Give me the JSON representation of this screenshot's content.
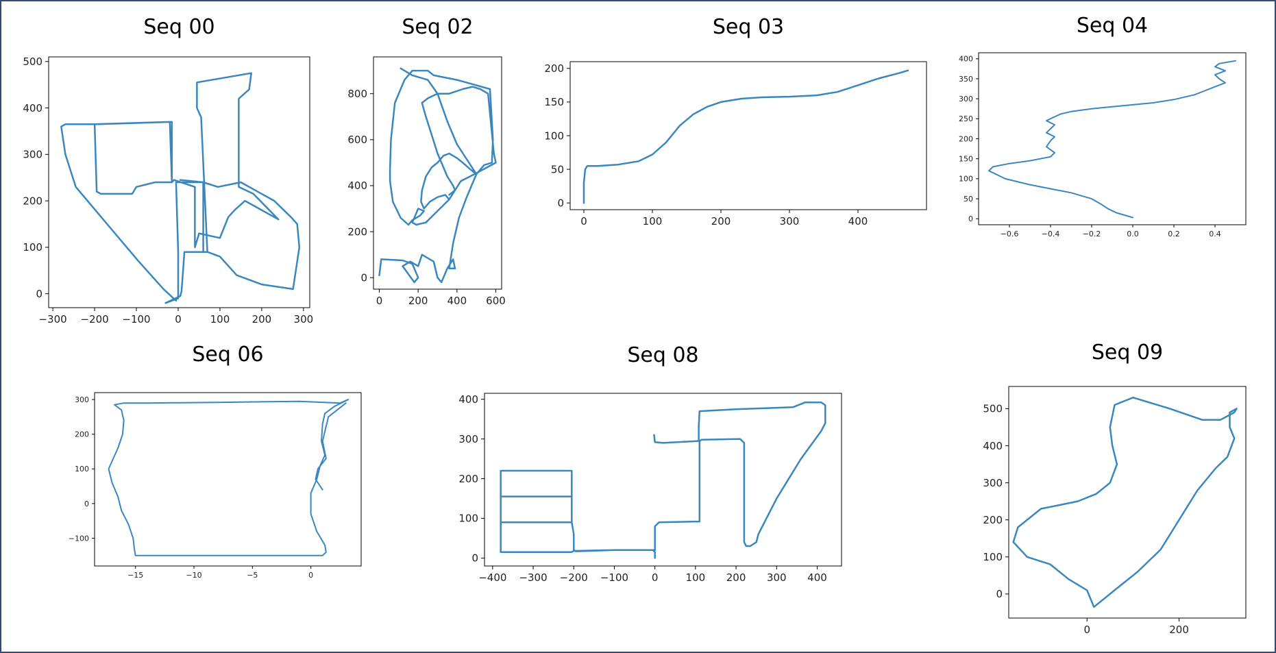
{
  "colors": {
    "line": "#3a86bf",
    "frame": "#2f4b7c"
  },
  "chart_data": [
    {
      "type": "line",
      "title": "Seq 00",
      "xlim": [
        -310,
        315
      ],
      "ylim": [
        -30,
        510
      ],
      "xticks": [
        -300,
        -200,
        -100,
        0,
        100,
        200,
        300
      ],
      "yticks": [
        0,
        100,
        200,
        300,
        400,
        500
      ],
      "grid": false,
      "series": [
        {
          "x": [
            -30,
            0,
            0,
            -5,
            60,
            60,
            70,
            55,
            45,
            45,
            175,
            170,
            145,
            145,
            180,
            240,
            160,
            135,
            120,
            100,
            50,
            40,
            40
          ],
          "y": [
            -20,
            -10,
            90,
            240,
            240,
            90,
            90,
            380,
            400,
            455,
            475,
            440,
            420,
            230,
            215,
            160,
            200,
            180,
            165,
            120,
            130,
            100,
            230
          ]
        },
        {
          "x": [
            40,
            -10,
            -15,
            -20,
            -200,
            -195,
            -185,
            -110,
            -100,
            -55,
            -15,
            -15,
            -190,
            -270,
            -280,
            -270,
            -245,
            -170,
            -95,
            -35,
            -5
          ],
          "y": [
            230,
            245,
            240,
            370,
            365,
            220,
            215,
            215,
            230,
            240,
            240,
            370,
            365,
            365,
            360,
            300,
            230,
            150,
            70,
            10,
            -15
          ]
        },
        {
          "x": [
            -30,
            5,
            8,
            15,
            70,
            100,
            140,
            200,
            275,
            290,
            285,
            270,
            230,
            150,
            95,
            60,
            5
          ],
          "y": [
            -20,
            -5,
            5,
            90,
            90,
            80,
            40,
            20,
            10,
            100,
            150,
            165,
            200,
            240,
            230,
            240,
            245
          ]
        }
      ]
    },
    {
      "type": "line",
      "title": "Seq 02",
      "xlim": [
        -30,
        630
      ],
      "ylim": [
        -50,
        960
      ],
      "xticks": [
        0,
        200,
        400,
        600
      ],
      "yticks": [
        0,
        200,
        400,
        600,
        800
      ],
      "grid": false,
      "series": [
        {
          "x": [
            0,
            10,
            120,
            170,
            200,
            180,
            120,
            160,
            200,
            220,
            260,
            280,
            300,
            320,
            350,
            380,
            390,
            360,
            380,
            410,
            450,
            500,
            540,
            580,
            585,
            570,
            400,
            280,
            250,
            170,
            130,
            80,
            60,
            55,
            55,
            70,
            110,
            150,
            170,
            210,
            230,
            200,
            170,
            190,
            240,
            300,
            360,
            420,
            490,
            600,
            590,
            560,
            520,
            480,
            430,
            360,
            300,
            250,
            220
          ],
          "y": [
            10,
            80,
            75,
            60,
            0,
            -20,
            50,
            70,
            50,
            100,
            80,
            70,
            0,
            -20,
            40,
            80,
            40,
            40,
            150,
            260,
            350,
            450,
            490,
            500,
            600,
            820,
            860,
            880,
            900,
            900,
            860,
            760,
            600,
            470,
            420,
            330,
            260,
            230,
            250,
            270,
            290,
            300,
            240,
            230,
            240,
            290,
            340,
            420,
            450,
            500,
            540,
            800,
            820,
            830,
            820,
            800,
            800,
            780,
            760
          ]
        },
        {
          "x": [
            110,
            170,
            250,
            300,
            350,
            400,
            500,
            470,
            430,
            400,
            360,
            330,
            300,
            270,
            240,
            220,
            215,
            230,
            260,
            300,
            340,
            360
          ],
          "y": [
            910,
            880,
            860,
            800,
            680,
            580,
            450,
            470,
            500,
            520,
            540,
            530,
            500,
            480,
            440,
            380,
            330,
            300,
            330,
            350,
            360,
            340
          ]
        },
        {
          "x": [
            220,
            240,
            270,
            300,
            350,
            380,
            390,
            360
          ],
          "y": [
            760,
            700,
            620,
            540,
            440,
            400,
            380,
            360
          ]
        }
      ]
    },
    {
      "type": "line",
      "title": "Seq 03",
      "xlim": [
        -20,
        500
      ],
      "ylim": [
        -10,
        210
      ],
      "xticks": [
        0,
        100,
        200,
        300,
        400
      ],
      "yticks": [
        0,
        50,
        100,
        150,
        200
      ],
      "grid": false,
      "series": [
        {
          "x": [
            0,
            0,
            2,
            5,
            20,
            50,
            80,
            100,
            120,
            140,
            160,
            180,
            200,
            230,
            260,
            300,
            340,
            370,
            400,
            430,
            460,
            473
          ],
          "y": [
            0,
            30,
            50,
            55,
            55,
            57,
            62,
            72,
            90,
            115,
            132,
            143,
            150,
            155,
            157,
            158,
            160,
            165,
            175,
            185,
            193,
            197
          ]
        }
      ]
    },
    {
      "type": "line",
      "title": "Seq 04",
      "xlim": [
        -0.75,
        0.55
      ],
      "ylim": [
        -15,
        415
      ],
      "xticks": [
        -0.6,
        -0.4,
        -0.2,
        0.0,
        0.2,
        0.4
      ],
      "yticks": [
        0,
        50,
        100,
        150,
        200,
        250,
        300,
        350,
        400
      ],
      "grid": false,
      "series": [
        {
          "x": [
            0.0,
            -0.08,
            -0.12,
            -0.15,
            -0.2,
            -0.3,
            -0.4,
            -0.5,
            -0.62,
            -0.7,
            -0.68,
            -0.6,
            -0.5,
            -0.45,
            -0.4,
            -0.38,
            -0.42,
            -0.4,
            -0.38,
            -0.42,
            -0.4,
            -0.38,
            -0.42,
            -0.38,
            -0.35,
            -0.3,
            -0.2,
            -0.1,
            0.0,
            0.1,
            0.2,
            0.3,
            0.35,
            0.4,
            0.45,
            0.42,
            0.4,
            0.45,
            0.4,
            0.42,
            0.5
          ],
          "y": [
            3,
            15,
            25,
            35,
            50,
            65,
            75,
            85,
            100,
            120,
            130,
            138,
            145,
            150,
            155,
            165,
            180,
            195,
            205,
            215,
            225,
            235,
            245,
            255,
            262,
            268,
            275,
            280,
            285,
            290,
            298,
            310,
            320,
            330,
            340,
            350,
            360,
            370,
            380,
            388,
            395
          ]
        }
      ]
    },
    {
      "type": "line",
      "title": "Seq 06",
      "xlim": [
        -18.5,
        4.3
      ],
      "ylim": [
        -180,
        320
      ],
      "xticks": [
        -15,
        -10,
        -5,
        0
      ],
      "yticks": [
        -100,
        0,
        100,
        200,
        300
      ],
      "grid": false,
      "series": [
        {
          "x": [
            3.2,
            2.0,
            1.2,
            1.0,
            0.9,
            1.2,
            0.8,
            0.5,
            0.0,
            0.0,
            0.5,
            1.2,
            1.3,
            1.0,
            -15.0,
            -15.1,
            -15.2,
            -15.6,
            -16.2,
            -16.5,
            -17.0,
            -17.3,
            -16.9,
            -16.5,
            -16.1,
            -16.0,
            -16.2,
            -16.8,
            -16.0,
            -14.0,
            -8.0,
            -1.0,
            2.5,
            3.2
          ],
          "y": [
            300,
            280,
            260,
            230,
            180,
            140,
            110,
            70,
            30,
            -30,
            -80,
            -120,
            -140,
            -150,
            -150,
            -130,
            -100,
            -60,
            -20,
            20,
            60,
            100,
            130,
            160,
            200,
            240,
            270,
            285,
            290,
            290,
            292,
            295,
            290,
            300
          ]
        },
        {
          "x": [
            3.0,
            1.5,
            1.0,
            1.3,
            0.6,
            0.4,
            1.0
          ],
          "y": [
            290,
            250,
            180,
            130,
            100,
            70,
            40
          ]
        }
      ]
    },
    {
      "type": "line",
      "title": "Seq 08",
      "xlim": [
        -420,
        460
      ],
      "ylim": [
        -20,
        415
      ],
      "xticks": [
        -400,
        -300,
        -200,
        -100,
        0,
        100,
        200,
        300,
        400
      ],
      "yticks": [
        0,
        100,
        200,
        300,
        400
      ],
      "grid": false,
      "series": [
        {
          "x": [
            0,
            0,
            -5,
            -100,
            -200,
            -205,
            -380,
            -380,
            -205,
            -205,
            -380,
            -380,
            -205,
            -205,
            -380,
            -380,
            -205,
            -200,
            -200,
            -195,
            -100,
            0
          ],
          "y": [
            0,
            15,
            20,
            20,
            18,
            15,
            15,
            90,
            90,
            155,
            155,
            220,
            220,
            155,
            155,
            90,
            90,
            60,
            20,
            17,
            20,
            20
          ]
        },
        {
          "x": [
            0,
            0,
            10,
            110,
            110,
            115,
            210,
            220,
            220,
            225,
            235,
            250,
            255,
            300,
            360,
            410,
            420,
            420,
            410,
            370,
            340,
            200,
            110,
            108,
            108,
            110,
            20,
            0,
            -2
          ],
          "y": [
            20,
            80,
            90,
            92,
            295,
            298,
            300,
            290,
            40,
            30,
            30,
            40,
            60,
            150,
            250,
            320,
            340,
            385,
            392,
            392,
            380,
            375,
            370,
            330,
            295,
            295,
            290,
            292,
            310
          ]
        }
      ]
    },
    {
      "type": "line",
      "title": "Seq 09",
      "xlim": [
        -170,
        345
      ],
      "ylim": [
        -65,
        560
      ],
      "xticks": [
        0,
        200
      ],
      "yticks": [
        0,
        100,
        200,
        300,
        400,
        500
      ],
      "grid": false,
      "series": [
        {
          "x": [
            0,
            15,
            60,
            110,
            160,
            200,
            240,
            280,
            305,
            320,
            310,
            310,
            325,
            320,
            290,
            250,
            180,
            100,
            60,
            50,
            55,
            65,
            50,
            20,
            -20,
            -60,
            -100,
            -150,
            -160,
            -130,
            -80,
            -40,
            0
          ],
          "y": [
            10,
            -35,
            10,
            60,
            120,
            200,
            280,
            340,
            370,
            420,
            450,
            490,
            500,
            490,
            470,
            470,
            500,
            530,
            510,
            450,
            400,
            350,
            300,
            270,
            250,
            240,
            230,
            180,
            140,
            100,
            80,
            40,
            10
          ]
        }
      ]
    }
  ]
}
